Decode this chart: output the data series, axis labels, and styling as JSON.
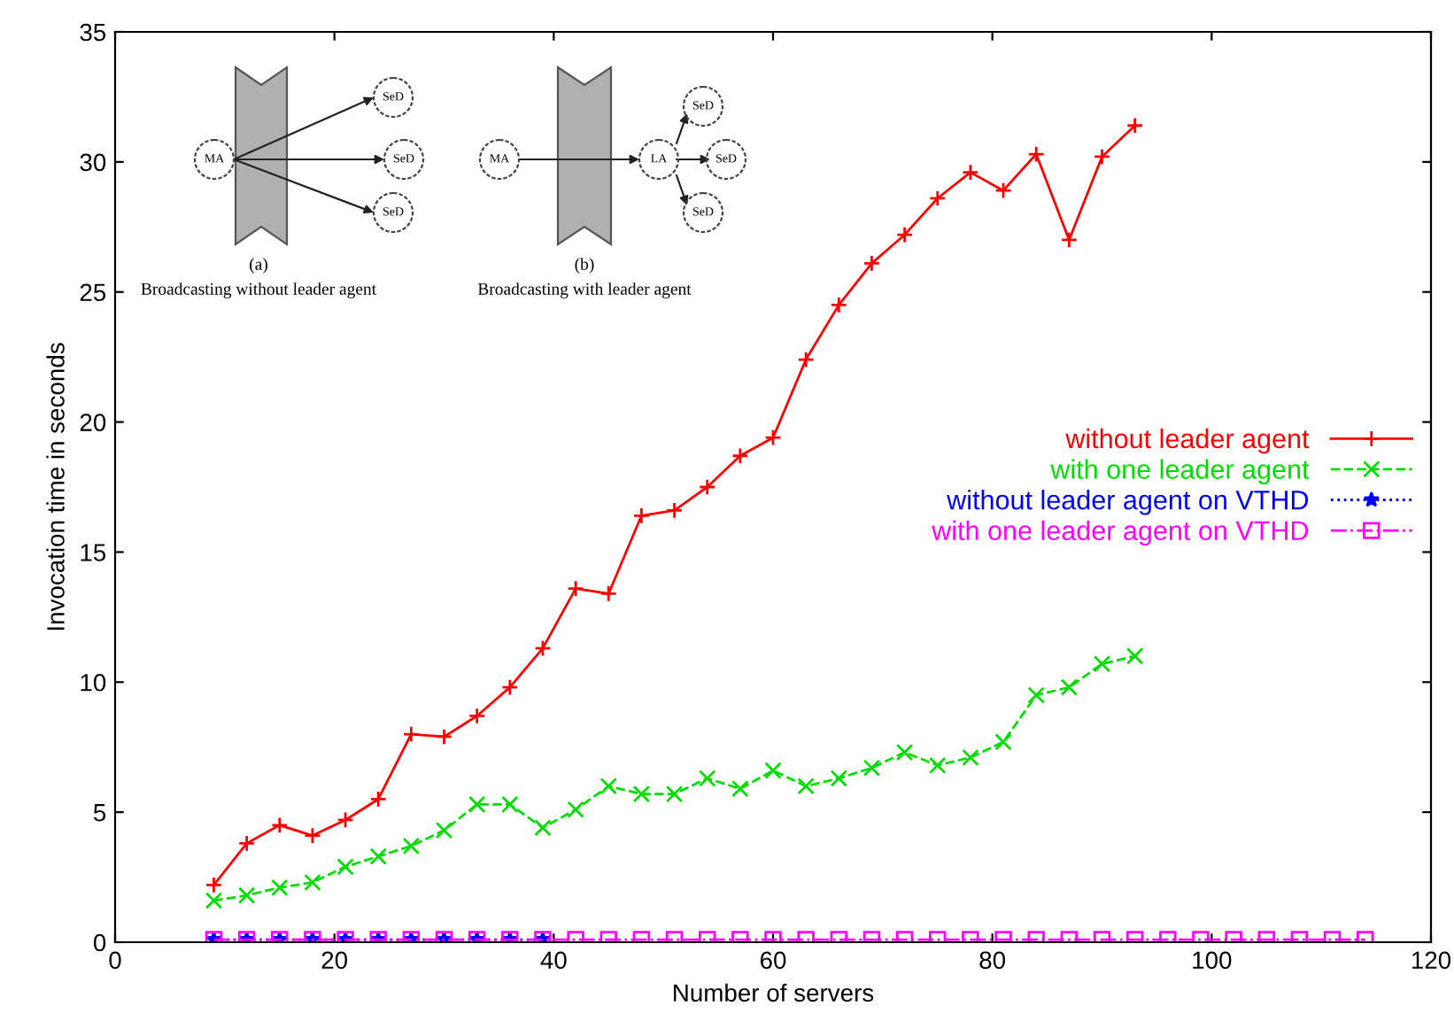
{
  "chart_data": {
    "type": "line",
    "xlabel": "Number of servers",
    "ylabel": "Invocation time in seconds",
    "xlim": [
      0,
      120
    ],
    "xticks": [
      0,
      20,
      40,
      60,
      80,
      100,
      120
    ],
    "ylim": [
      0,
      35
    ],
    "yticks": [
      0,
      5,
      10,
      15,
      20,
      25,
      30,
      35
    ],
    "grid": false,
    "legend": "right",
    "series": [
      {
        "name": "without leader agent",
        "color": "#ff0000",
        "marker": "plus",
        "line_style": "solid",
        "x": [
          9,
          12,
          15,
          18,
          21,
          24,
          27,
          30,
          33,
          36,
          39,
          42,
          45,
          48,
          51,
          54,
          57,
          60,
          63,
          66,
          69,
          72,
          75,
          78,
          81,
          84,
          87,
          90,
          93
        ],
        "values": [
          2.2,
          3.8,
          4.5,
          4.1,
          4.7,
          5.5,
          8.0,
          7.9,
          8.7,
          9.8,
          11.3,
          13.6,
          13.4,
          16.4,
          16.6,
          17.5,
          18.7,
          19.4,
          22.4,
          24.5,
          26.1,
          27.2,
          28.6,
          29.6,
          28.9,
          30.3,
          27.0,
          30.2,
          31.4
        ]
      },
      {
        "name": "with one leader agent",
        "color": "#00dd00",
        "marker": "cross",
        "line_style": "dashed",
        "x": [
          9,
          12,
          15,
          18,
          21,
          24,
          27,
          30,
          33,
          36,
          39,
          42,
          45,
          48,
          51,
          54,
          57,
          60,
          63,
          66,
          69,
          72,
          75,
          78,
          81,
          84,
          87,
          90,
          93
        ],
        "values": [
          1.6,
          1.8,
          2.1,
          2.3,
          2.9,
          3.3,
          3.7,
          4.3,
          5.3,
          5.3,
          4.4,
          5.1,
          6.0,
          5.7,
          5.7,
          6.3,
          5.9,
          6.6,
          6.0,
          6.3,
          6.7,
          7.3,
          6.8,
          7.1,
          7.7,
          9.5,
          9.8,
          10.7,
          11.0
        ]
      },
      {
        "name": "without leader agent on VTHD",
        "color": "#0000ff",
        "marker": "star",
        "line_style": "dotted",
        "x": [
          9,
          12,
          15,
          18,
          21,
          24,
          27,
          30,
          33,
          36,
          39
        ],
        "values": [
          0.1,
          0.1,
          0.1,
          0.1,
          0.1,
          0.1,
          0.1,
          0.1,
          0.1,
          0.1,
          0.1
        ]
      },
      {
        "name": "with one leader agent on VTHD",
        "color": "#ff00ff",
        "marker": "square",
        "line_style": "dashdot",
        "x": [
          9,
          12,
          15,
          18,
          21,
          24,
          27,
          30,
          33,
          36,
          39,
          42,
          45,
          48,
          51,
          54,
          57,
          60,
          63,
          66,
          69,
          72,
          75,
          78,
          81,
          84,
          87,
          90,
          93,
          96,
          99,
          102,
          105,
          108,
          111,
          114
        ],
        "values": [
          0.1,
          0.1,
          0.1,
          0.1,
          0.1,
          0.1,
          0.1,
          0.1,
          0.1,
          0.1,
          0.1,
          0.1,
          0.1,
          0.1,
          0.1,
          0.1,
          0.1,
          0.1,
          0.1,
          0.1,
          0.1,
          0.1,
          0.1,
          0.1,
          0.1,
          0.1,
          0.1,
          0.1,
          0.1,
          0.1,
          0.1,
          0.1,
          0.1,
          0.1,
          0.1,
          0.1
        ]
      }
    ],
    "annotations": [
      "MA",
      "SeD",
      "SeD",
      "SeD",
      "(a)",
      "Broadcasting without leader agent",
      "MA",
      "LA",
      "SeD",
      "SeD",
      "SeD",
      "(b)",
      "Broadcasting with leader agent"
    ]
  }
}
